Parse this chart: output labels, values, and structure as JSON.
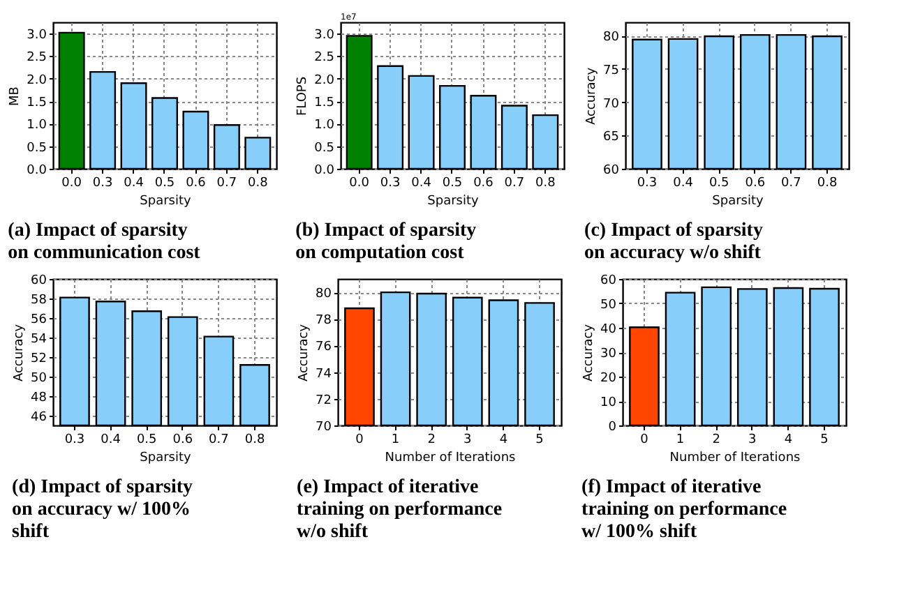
{
  "chart_data": [
    {
      "type": "bar",
      "title": "(a) Impact of sparsity on communication cost",
      "xlabel": "Sparsity",
      "ylabel": "MB",
      "categories": [
        "0.0",
        "0.3",
        "0.4",
        "0.5",
        "0.6",
        "0.7",
        "0.8"
      ],
      "values": [
        3.02,
        2.15,
        1.9,
        1.57,
        1.27,
        0.97,
        0.69
      ],
      "colors": [
        "#008000",
        "#87cefa",
        "#87cefa",
        "#87cefa",
        "#87cefa",
        "#87cefa",
        "#87cefa"
      ],
      "ylim": [
        0,
        3.25
      ],
      "yticks": [
        {
          "value": 0,
          "label": "0.0"
        },
        {
          "value": 0.5,
          "label": "0.5"
        },
        {
          "value": 1,
          "label": "1.0"
        },
        {
          "value": 1.5,
          "label": "1.5"
        },
        {
          "value": 2,
          "label": "2.0"
        },
        {
          "value": 2.5,
          "label": "2.5"
        },
        {
          "value": 3,
          "label": "3.0"
        }
      ],
      "grid": true
    },
    {
      "type": "bar",
      "title": "(b) Impact of sparsity on computation cost",
      "xlabel": "Sparsity",
      "ylabel": "FLOPS",
      "annotations": [
        "1e7"
      ],
      "categories": [
        "0.0",
        "0.3",
        "0.4",
        "0.5",
        "0.6",
        "0.7",
        "0.8"
      ],
      "values": [
        2.95,
        2.28,
        2.06,
        1.84,
        1.62,
        1.4,
        1.19
      ],
      "colors": [
        "#008000",
        "#87cefa",
        "#87cefa",
        "#87cefa",
        "#87cefa",
        "#87cefa",
        "#87cefa"
      ],
      "ylim": [
        0,
        3.25
      ],
      "yticks": [
        {
          "value": 0,
          "label": "0.0"
        },
        {
          "value": 0.5,
          "label": "0.5"
        },
        {
          "value": 1,
          "label": "1.0"
        },
        {
          "value": 1.5,
          "label": "1.5"
        },
        {
          "value": 2,
          "label": "2.0"
        },
        {
          "value": 2.5,
          "label": "2.5"
        },
        {
          "value": 3,
          "label": "3.0"
        }
      ],
      "grid": true
    },
    {
      "type": "bar",
      "title": "(c) Impact of sparsity on accuracy w/o shift",
      "xlabel": "Sparsity",
      "ylabel": "Accuracy",
      "categories": [
        "0.3",
        "0.4",
        "0.5",
        "0.6",
        "0.7",
        "0.8"
      ],
      "values": [
        79.4,
        79.5,
        79.9,
        80.1,
        80.1,
        79.9
      ],
      "color": "#87cefa",
      "ylim": [
        60,
        82
      ],
      "yticks": [
        60,
        65,
        70,
        75,
        80
      ],
      "grid": true
    },
    {
      "type": "bar",
      "title": "(d) Impact of sparsity on accuracy w/ 100% shift",
      "xlabel": "Sparsity",
      "ylabel": "Accuracy",
      "categories": [
        "0.3",
        "0.4",
        "0.5",
        "0.6",
        "0.7",
        "0.8"
      ],
      "values": [
        58.1,
        57.7,
        56.7,
        56.1,
        54.1,
        51.2
      ],
      "color": "#87cefa",
      "ylim": [
        45,
        60
      ],
      "yticks": [
        46,
        48,
        50,
        52,
        54,
        56,
        58,
        60
      ],
      "grid": true
    },
    {
      "type": "bar",
      "title": "(e) Impact of iterative training on performance w/o shift",
      "xlabel": "Number of Iterations",
      "ylabel": "Accuracy",
      "categories": [
        "0",
        "1",
        "2",
        "3",
        "4",
        "5"
      ],
      "values": [
        78.8,
        80.0,
        79.9,
        79.6,
        79.4,
        79.2
      ],
      "colors": [
        "#ff4500",
        "#87cefa",
        "#87cefa",
        "#87cefa",
        "#87cefa",
        "#87cefa"
      ],
      "ylim": [
        70,
        81
      ],
      "yticks": [
        70,
        72,
        74,
        76,
        78,
        80
      ],
      "grid": true
    },
    {
      "type": "bar",
      "title": "(f) Impact of iterative training on performance w/ 100% shift",
      "xlabel": "Number of Iterations",
      "ylabel": "Accuracy",
      "categories": [
        "0",
        "1",
        "2",
        "3",
        "4",
        "5"
      ],
      "values": [
        40.2,
        54.4,
        56.6,
        55.9,
        56.3,
        56.0
      ],
      "colors": [
        "#ff4500",
        "#87cefa",
        "#87cefa",
        "#87cefa",
        "#87cefa",
        "#87cefa"
      ],
      "ylim": [
        0,
        60
      ],
      "yticks": [
        0,
        10,
        20,
        30,
        40,
        50,
        60
      ],
      "grid": true
    }
  ]
}
